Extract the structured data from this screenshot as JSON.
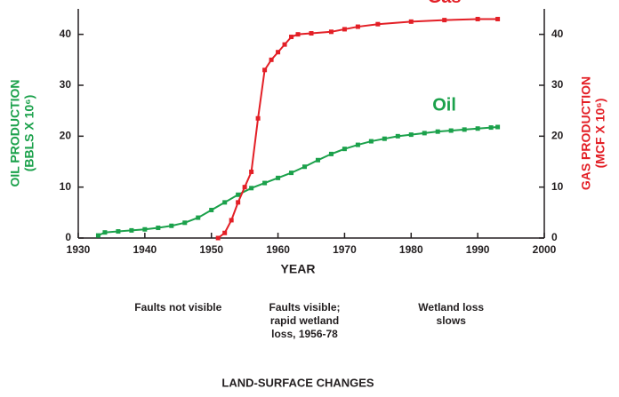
{
  "chart_data": {
    "type": "line",
    "xlabel": "YEAR",
    "ylabel": [
      "OIL PRODUCTION",
      "(BBLS X 10⁶)"
    ],
    "y2label": [
      "GAS PRODUCTION",
      "(MCF X 10⁶)"
    ],
    "xlim": [
      1930,
      2000
    ],
    "xticks": [
      1930,
      1940,
      1950,
      1960,
      1970,
      1980,
      1990,
      2000
    ],
    "ylim": [
      0,
      45
    ],
    "yticks": [
      0,
      10,
      20,
      30,
      40
    ],
    "y2lim": [
      0,
      45
    ],
    "y2ticks": [
      0,
      10,
      20,
      30,
      40
    ],
    "series": [
      {
        "name": "Oil",
        "color": "#1ba14b",
        "x": [
          1933,
          1934,
          1936,
          1938,
          1940,
          1942,
          1944,
          1946,
          1948,
          1950,
          1952,
          1954,
          1956,
          1958,
          1960,
          1962,
          1964,
          1966,
          1968,
          1970,
          1972,
          1974,
          1976,
          1978,
          1980,
          1982,
          1984,
          1986,
          1988,
          1990,
          1992,
          1993
        ],
        "values": [
          0.5,
          1.1,
          1.3,
          1.5,
          1.7,
          2.0,
          2.4,
          3.0,
          4.0,
          5.5,
          7.0,
          8.5,
          9.8,
          10.8,
          11.8,
          12.8,
          14.0,
          15.3,
          16.5,
          17.5,
          18.3,
          19.0,
          19.5,
          20.0,
          20.3,
          20.6,
          20.9,
          21.1,
          21.3,
          21.5,
          21.7,
          21.8
        ]
      },
      {
        "name": "Gas",
        "color": "#e31f26",
        "axis": "y2",
        "x": [
          1951,
          1952,
          1953,
          1954,
          1955,
          1956,
          1957,
          1958,
          1959,
          1960,
          1961,
          1962,
          1963,
          1965,
          1968,
          1970,
          1972,
          1975,
          1980,
          1985,
          1990,
          1993
        ],
        "values": [
          0,
          1,
          3.5,
          7,
          10,
          13,
          23.5,
          33,
          35,
          36.5,
          38,
          39.5,
          40,
          40.2,
          40.5,
          41,
          41.5,
          42,
          42.5,
          42.8,
          43,
          43
        ]
      }
    ],
    "annotations": [
      {
        "lines": [
          "Faults not visible"
        ],
        "x": 1945
      },
      {
        "lines": [
          "Faults visible;",
          "rapid wetland",
          "loss, 1956-78"
        ],
        "x": 1964
      },
      {
        "lines": [
          "Wetland loss",
          "slows"
        ],
        "x": 1986
      }
    ],
    "footer": "LAND-SURFACE CHANGES"
  }
}
